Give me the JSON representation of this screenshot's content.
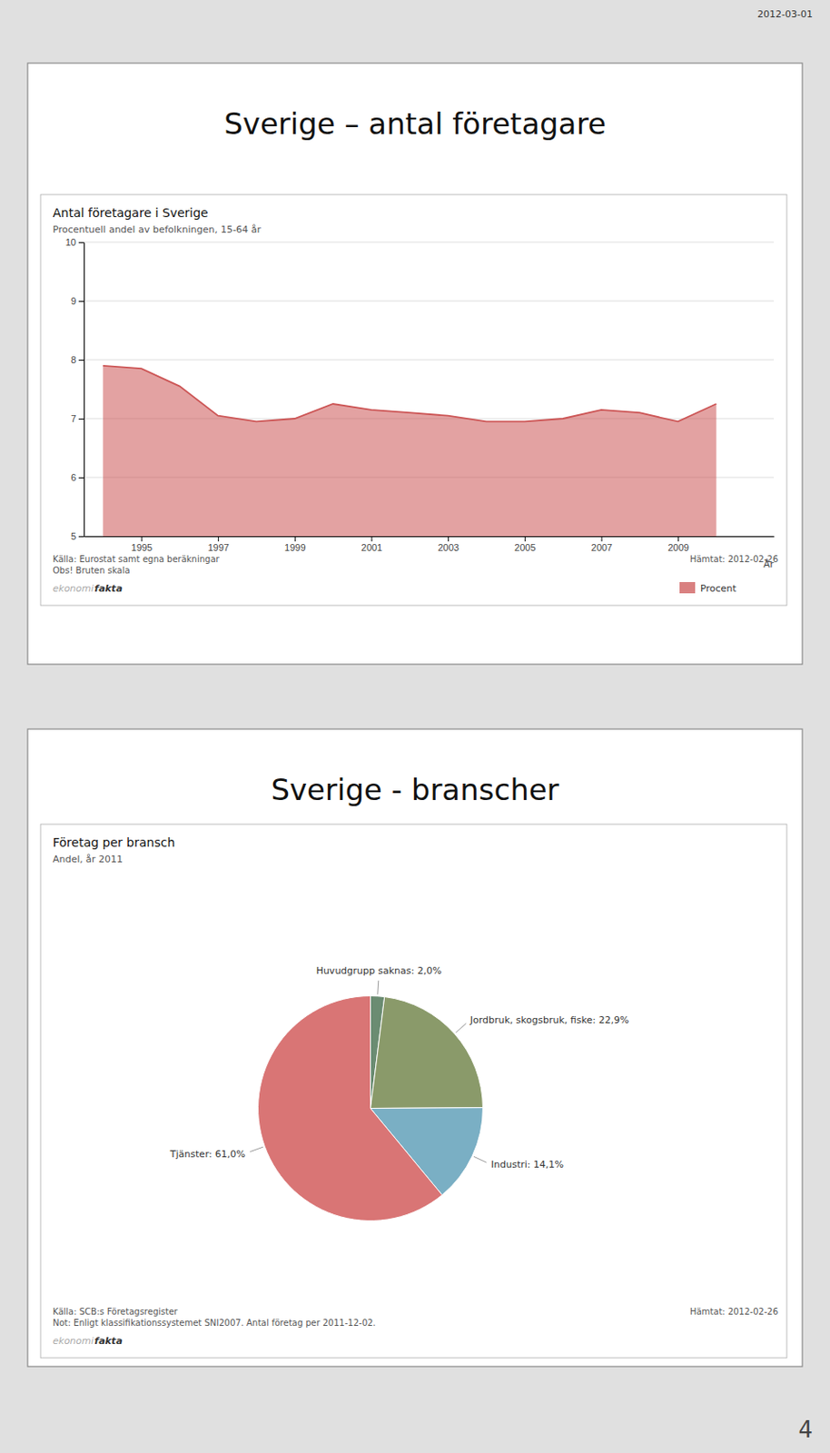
{
  "page_date": "2012-03-01",
  "page_number": "4",
  "chart_data": [
    {
      "type": "area",
      "slide_title": "Sverige – antal företagare",
      "title": "Antal företagare i Sverige",
      "subtitle": "Procentuell andel av befolkningen, 15-64 år",
      "xlabel": "År",
      "source": "Källa: Eurostat samt egna beräkningar\nObs! Bruten skala",
      "retrieved": "Hämtat: 2012-02-26",
      "logo": [
        "ekonomi",
        "fakta"
      ],
      "x": [
        1994,
        1995,
        1996,
        1997,
        1998,
        1999,
        2000,
        2001,
        2002,
        2003,
        2004,
        2005,
        2006,
        2007,
        2008,
        2009,
        2010
      ],
      "series": [
        {
          "name": "Procent",
          "color": "#cc5555",
          "values": [
            7.9,
            7.85,
            7.55,
            7.05,
            6.95,
            7.0,
            7.25,
            7.15,
            7.1,
            7.05,
            6.95,
            6.95,
            7.0,
            7.15,
            7.1,
            6.95,
            7.25
          ]
        }
      ],
      "xlim": [
        1993.5,
        2011.5
      ],
      "xticks": [
        1995,
        1997,
        1999,
        2001,
        2003,
        2005,
        2007,
        2009
      ],
      "ylim": [
        5,
        10
      ],
      "yticks": [
        5,
        6,
        7,
        8,
        9,
        10
      ],
      "grid": true,
      "legend": "bottom-right"
    },
    {
      "type": "pie",
      "slide_title": "Sverige - branscher",
      "title": "Företag per bransch",
      "subtitle": "Andel, år 2011",
      "source": "Källa: SCB:s Företagsregister\nNot: Enligt klassifikationssystemet SNI2007. Antal företag per 2011-12-02.",
      "retrieved": "Hämtat: 2012-02-26",
      "logo": [
        "ekonomi",
        "fakta"
      ],
      "values": [
        2.0,
        22.9,
        14.1,
        61.0
      ],
      "colors": [
        "#6b8c72",
        "#8a9a6a",
        "#7aafc4",
        "#d97575"
      ],
      "value_labels": [
        "Huvudgrupp saknas:  2,0%",
        "Jordbruk, skogsbruk, fiske:  22,9%",
        "Industri:  14,1%",
        "Tjänster:  61,0%"
      ],
      "data_labels": true
    }
  ]
}
